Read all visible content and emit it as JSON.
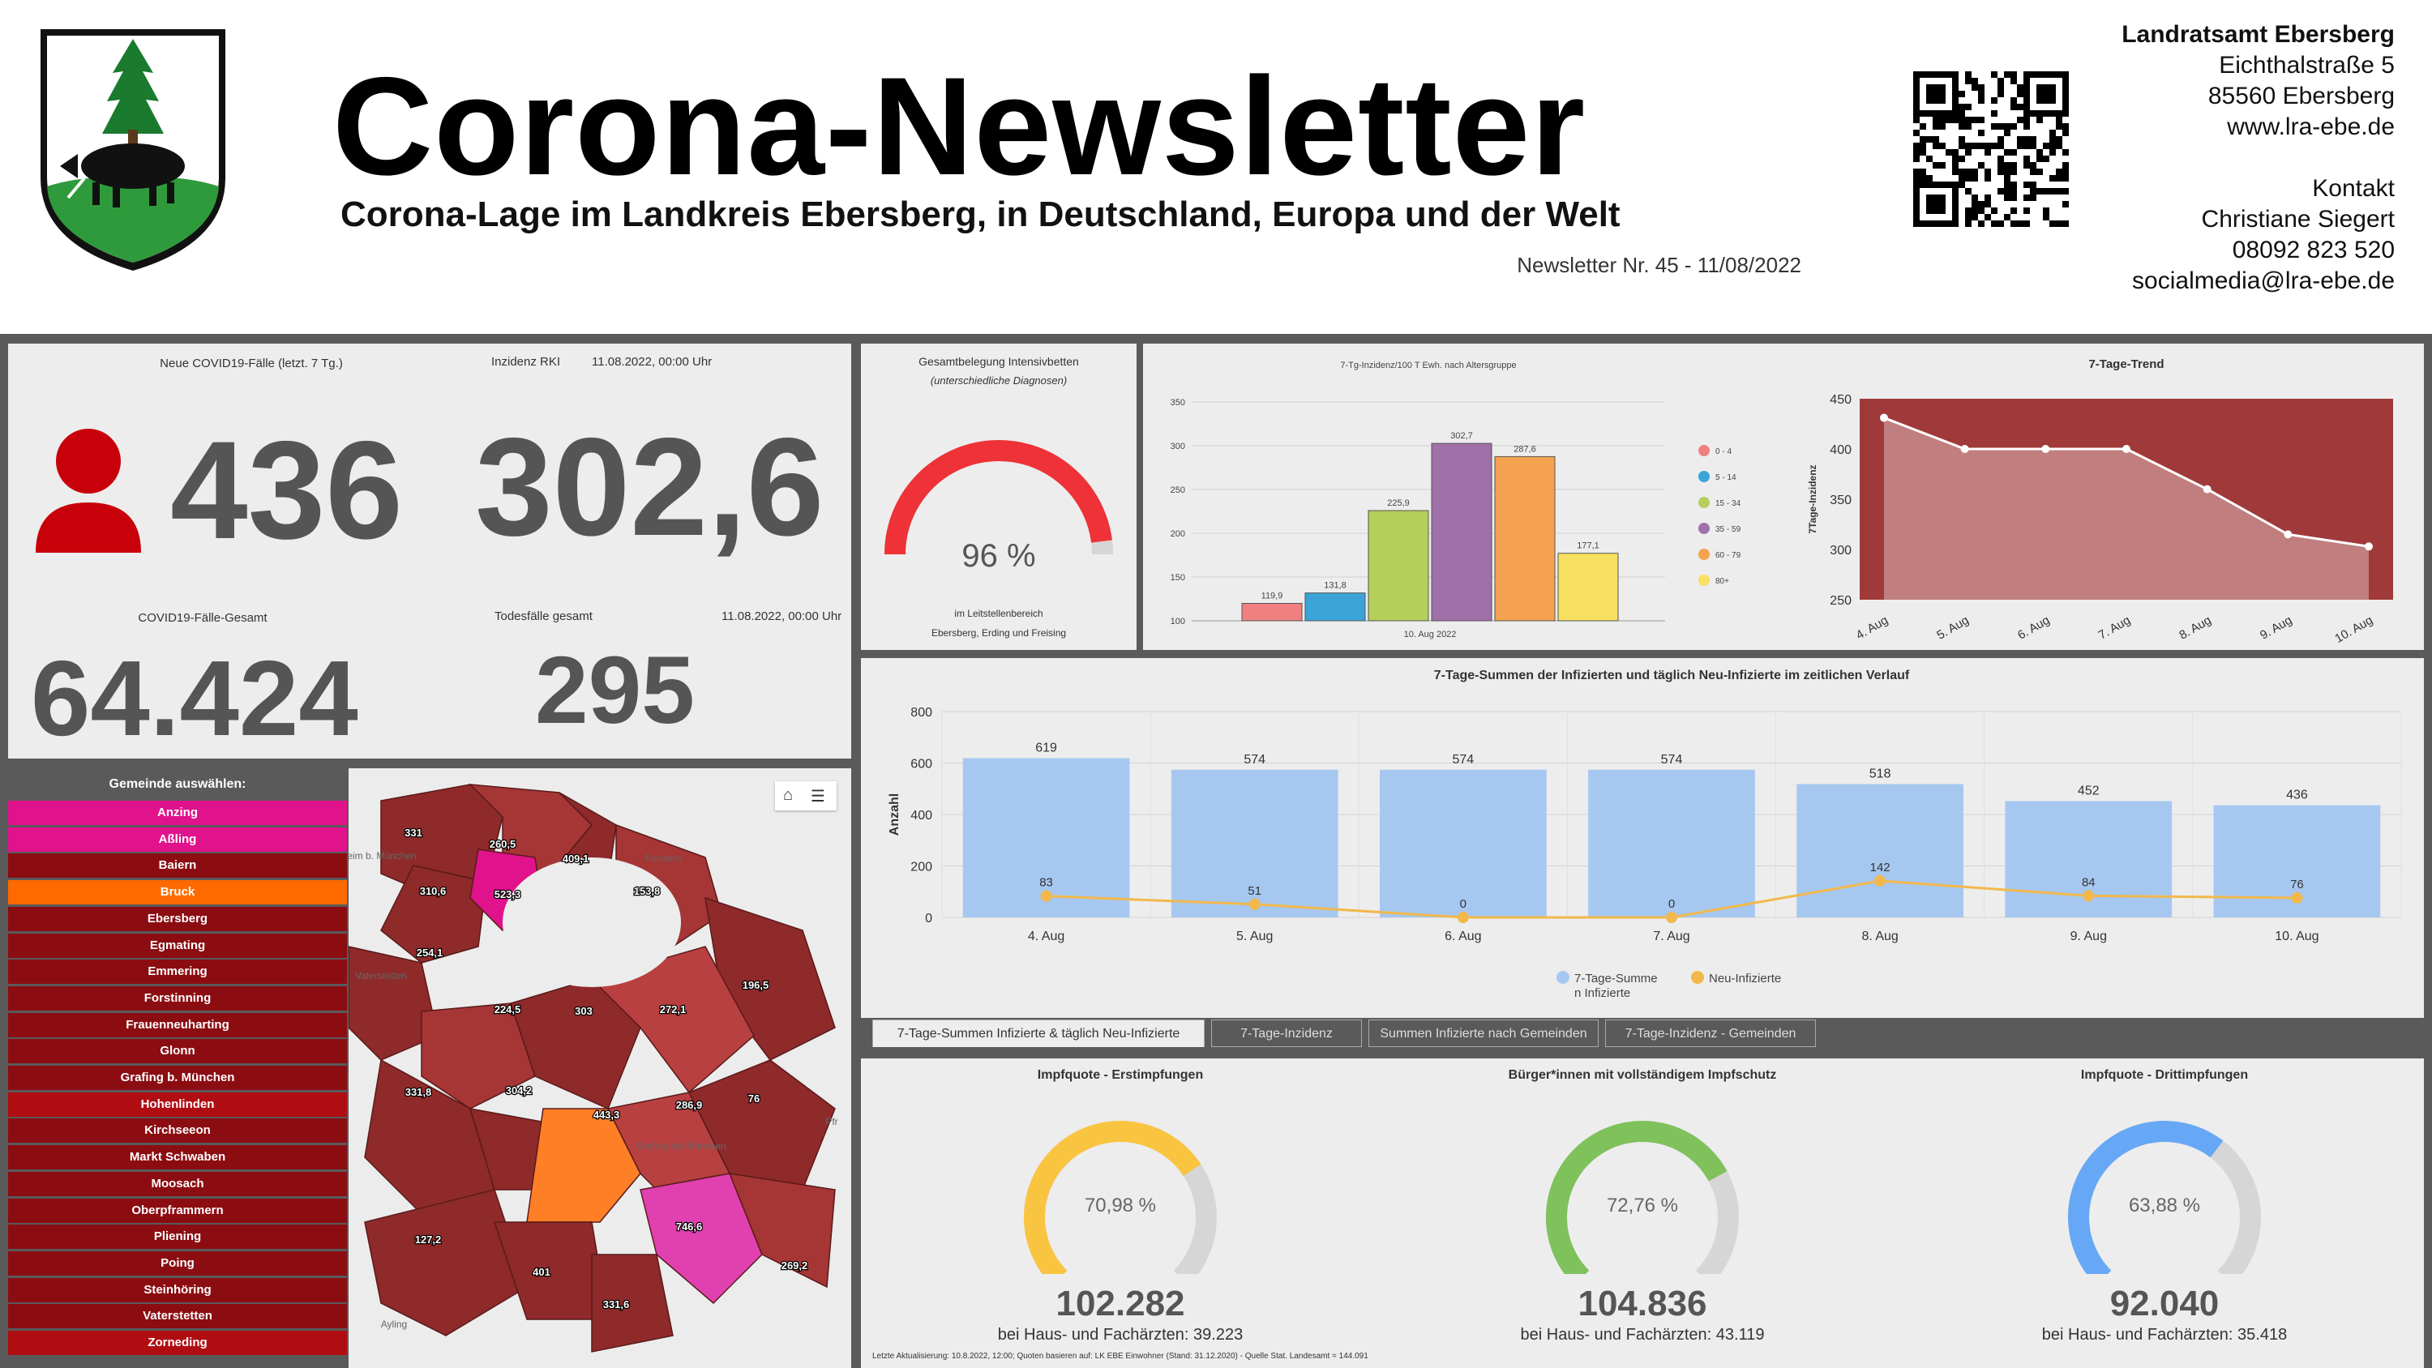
{
  "header": {
    "title": "Corona-Newsletter",
    "subtitle": "Corona-Lage im Landkreis Ebersberg, in Deutschland, Europa und der Welt",
    "issue": "Newsletter Nr. 45 - 11/08/2022",
    "org_name": "Landratsamt Ebersberg",
    "street": "Eichthalstraße 5",
    "city": "85560 Ebersberg",
    "website": "www.lra-ebe.de",
    "contact_label": "Kontakt",
    "contact_name": "Christiane Siegert",
    "phone": "08092 823 520",
    "email": "socialmedia@lra-ebe.de"
  },
  "stats": {
    "new_cases_label": "Neue COVID19-Fälle (letzt. 7 Tg.)",
    "new_cases": "436",
    "incidence_label": "Inzidenz RKI",
    "incidence_date": "11.08.2022, 00:00 Uhr",
    "incidence": "302,6",
    "total_label": "COVID19-Fälle-Gesamt",
    "total": "64.424",
    "deaths_label": "Todesfälle gesamt",
    "deaths_date": "11.08.2022, 00:00 Uhr",
    "deaths": "295"
  },
  "icu": {
    "title": "Gesamtbelegung Intensivbetten",
    "subtitle": "(unterschiedliche Diagnosen)",
    "percent": 96,
    "percent_text": "96 %",
    "note1": "im Leitstellenbereich",
    "note2": "Ebersberg, Erding und Freising",
    "color": "#ee3237"
  },
  "chart_data": [
    {
      "type": "bar",
      "title": "7-Tg-Inzidenz/100 T Ewh. nach Altersgruppe",
      "xlabel": "10. Aug 2022",
      "ylim": [
        100,
        350
      ],
      "yticks": [
        "100",
        "150",
        "200",
        "250",
        "300",
        "350"
      ],
      "categories": [
        "0 - 4",
        "5 - 14",
        "15 - 34",
        "35 - 59",
        "60 - 79",
        "80+"
      ],
      "values": [
        119.9,
        131.8,
        225.9,
        302.7,
        287.6,
        177.1
      ],
      "labels": [
        "119,9",
        "131,8",
        "225,9",
        "302,7",
        "287,6",
        "177,1"
      ],
      "colors": [
        "#f08080",
        "#3aa4d8",
        "#b5cf5a",
        "#a070a8",
        "#f5a250",
        "#f8e060"
      ],
      "legend": "right"
    },
    {
      "type": "area",
      "title": "7-Tage-Trend",
      "ylabel": "7Tage-Inzidenz",
      "ylim": [
        250,
        450
      ],
      "yticks": [
        "250",
        "300",
        "350",
        "400",
        "450"
      ],
      "categories": [
        "4. Aug",
        "5. Aug",
        "6. Aug",
        "7. Aug",
        "8. Aug",
        "9. Aug",
        "10. Aug"
      ],
      "values": [
        431,
        400,
        400,
        400,
        360,
        315,
        303
      ],
      "color": "#a03a3a"
    },
    {
      "type": "bar",
      "title": "7-Tage-Summen der Infizierten und täglich Neu-Infizierte im zeitlichen Verlauf",
      "ylabel": "Anzahl",
      "ylim": [
        0,
        800
      ],
      "yticks": [
        "0",
        "200",
        "400",
        "600",
        "800"
      ],
      "categories": [
        "4. Aug",
        "5. Aug",
        "6. Aug",
        "7. Aug",
        "8. Aug",
        "9. Aug",
        "10. Aug"
      ],
      "series": [
        {
          "name": "7-Tage-Summe n Infizierte",
          "values": [
            619,
            574,
            574,
            574,
            518,
            452,
            436
          ],
          "color": "#a6c8f0"
        },
        {
          "name": "Neu-Infizierte",
          "values": [
            83,
            51,
            0,
            0,
            142,
            84,
            76
          ],
          "color": "#f2b84b"
        }
      ],
      "legend": "bottom"
    }
  ],
  "trend_tabs": [
    "7-Tage-Summen Infizierte & täglich Neu-Infizierte",
    "7-Tage-Inzidenz",
    "Summen Infizierte nach Gemeinden",
    "7-Tage-Inzidenz - Gemeinden"
  ],
  "municipalities": {
    "header": "Gemeinde auswählen:",
    "items": [
      {
        "name": "Anzing",
        "color": "#e0128c"
      },
      {
        "name": "Aßling",
        "color": "#e0128c"
      },
      {
        "name": "Baiern",
        "color": "#8b0d12"
      },
      {
        "name": "Bruck",
        "color": "#ff6a00"
      },
      {
        "name": "Ebersberg",
        "color": "#8b0d12"
      },
      {
        "name": "Egmating",
        "color": "#8b0d12"
      },
      {
        "name": "Emmering",
        "color": "#8b0d12"
      },
      {
        "name": "Forstinning",
        "color": "#8b0d12"
      },
      {
        "name": "Frauenneuharting",
        "color": "#8b0d12"
      },
      {
        "name": "Glonn",
        "color": "#8b0d12"
      },
      {
        "name": "Grafing b. München",
        "color": "#8b0d12"
      },
      {
        "name": "Hohenlinden",
        "color": "#b00d12"
      },
      {
        "name": "Kirchseeon",
        "color": "#8b0d12"
      },
      {
        "name": "Markt Schwaben",
        "color": "#8b0d12"
      },
      {
        "name": "Moosach",
        "color": "#8b0d12"
      },
      {
        "name": "Oberpframmern",
        "color": "#8b0d12"
      },
      {
        "name": "Pliening",
        "color": "#8b0d12"
      },
      {
        "name": "Poing",
        "color": "#8b0d12"
      },
      {
        "name": "Steinhöring",
        "color": "#8b0d12"
      },
      {
        "name": "Vaterstetten",
        "color": "#8b0d12"
      },
      {
        "name": "Zorneding",
        "color": "#b00d12"
      }
    ]
  },
  "map": {
    "labels": [
      "331",
      "260,5",
      "409,1",
      "310,6",
      "523,3",
      "153,8",
      "254,1",
      "196,5",
      "224,5",
      "303",
      "272,1",
      "331,8",
      "304,2",
      "443,3",
      "286,9",
      "76",
      "746,6",
      "127,2",
      "401",
      "269,2",
      "331,6"
    ],
    "places": [
      "Forstern",
      "Ayling",
      "Vaterstetten",
      "Kirchheim b. München",
      "Grafing bei München",
      "Pfr"
    ]
  },
  "vaccination": [
    {
      "title": "Impfquote  - Erstimpfungen",
      "percent": 70.98,
      "percent_text": "70,98 %",
      "count": "102.282",
      "sub": "bei Haus- und Fachärzten: 39.223",
      "color": "#f9c440"
    },
    {
      "title": "Bürger*innen mit vollständigem Impfschutz",
      "percent": 72.76,
      "percent_text": "72,76 %",
      "count": "104.836",
      "sub": "bei Haus- und Fachärzten: 43.119",
      "color": "#7fc15b"
    },
    {
      "title": "Impfquote  - Drittimpfungen",
      "percent": 63.88,
      "percent_text": "63,88 %",
      "count": "92.040",
      "sub": "bei Haus- und Fachärzten: 35.418",
      "color": "#66a8f5"
    }
  ],
  "footer_note": "Letzte Aktualisierung: 10.8.2022, 12:00; Quoten basieren auf: LK EBE Einwohner (Stand: 31.12.2020) - Quelle Stat. Landesamt = 144.091"
}
